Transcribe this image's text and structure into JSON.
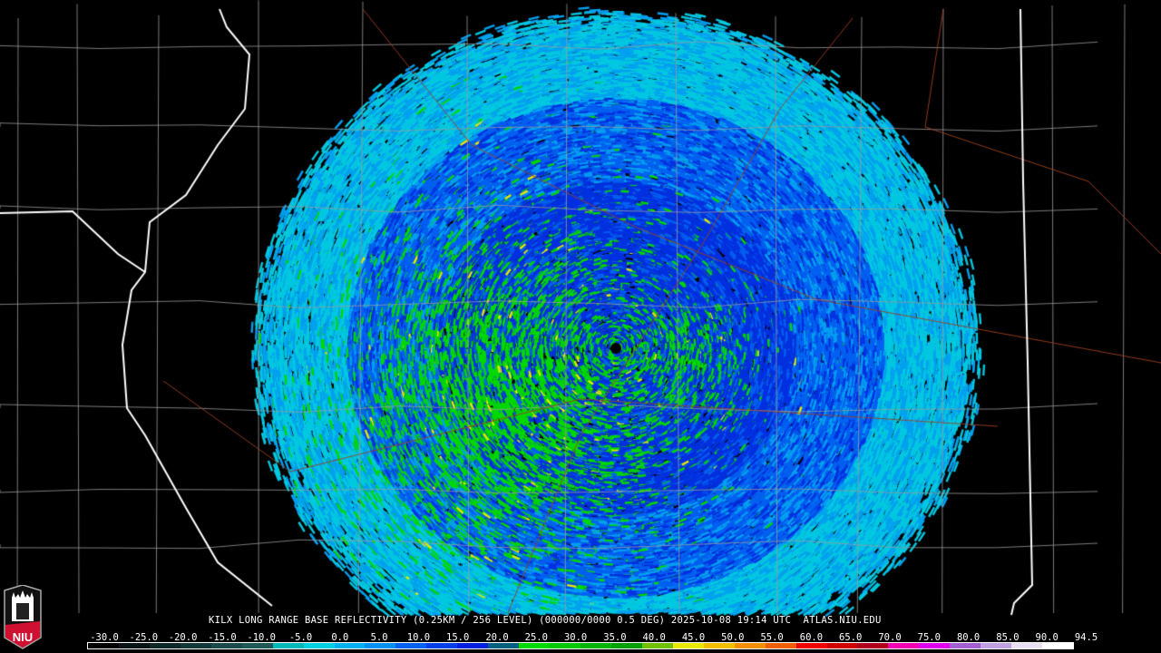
{
  "product_title": "KILX LONG RANGE BASE REFLECTIVITY (0.25KM / 256 LEVEL) (000000/0000 0.5 DEG) 2025-10-08 19:14 UTC  ATLAS.NIU.EDU",
  "logo_text": "NIU",
  "colorbar": {
    "labels": [
      "-30.0",
      "-25.0",
      "-20.0",
      "-15.0",
      "-10.0",
      "-5.0",
      "0.0",
      "5.0",
      "10.0",
      "15.0",
      "20.0",
      "25.0",
      "30.0",
      "35.0",
      "40.0",
      "45.0",
      "50.0",
      "55.0",
      "60.0",
      "65.0",
      "70.0",
      "75.0",
      "80.0",
      "85.0",
      "90.0",
      "94.5"
    ],
    "colors": [
      "#000000",
      "#0a1414",
      "#0f2828",
      "#143838",
      "#1a4a4a",
      "#205858",
      "#00b8b8",
      "#00d0e0",
      "#00b0f0",
      "#0090f0",
      "#0060f0",
      "#0040e8",
      "#0020e0",
      "#006080",
      "#00d800",
      "#00c800",
      "#00b400",
      "#00a000",
      "#70c000",
      "#e8e800",
      "#f0c000",
      "#f09000",
      "#f06000",
      "#f00000",
      "#d00000",
      "#b00020",
      "#f000b0",
      "#e000f0",
      "#a060d0",
      "#c0a0e0",
      "#e8e0f0",
      "#ffffff"
    ]
  },
  "radar_site_marker": "KILX",
  "map_colors": {
    "state_border": "#ffffff",
    "county_border": "#9a9a9a",
    "road": "#a04020"
  }
}
